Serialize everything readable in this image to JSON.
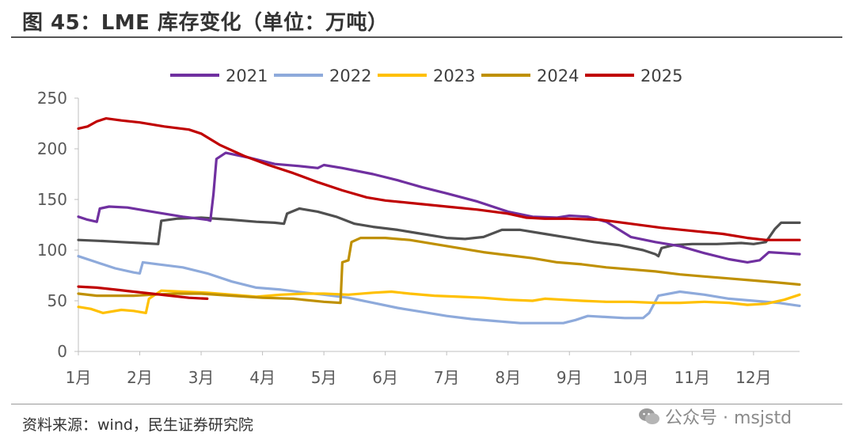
{
  "figure": {
    "title": "图 45：LME 库存变化（单位：万吨）",
    "source": "资料来源：wind，民生证券研究院",
    "watermark": "公众号 · msjstd"
  },
  "chart_data": {
    "type": "line",
    "title": "图 45：LME 库存变化（单位：万吨）",
    "xlabel": "",
    "ylabel": "",
    "x_ticks": [
      "1月",
      "2月",
      "3月",
      "4月",
      "5月",
      "6月",
      "7月",
      "8月",
      "9月",
      "10月",
      "11月",
      "12月"
    ],
    "xlim": [
      1,
      12.75
    ],
    "ylim": [
      0,
      250
    ],
    "y_ticks": [
      0,
      50,
      100,
      150,
      200,
      250
    ],
    "grid": false,
    "legend_position": "top",
    "series": [
      {
        "name": "2021",
        "color": "#7030a0",
        "points": [
          [
            1,
            133
          ],
          [
            1.15,
            130
          ],
          [
            1.3,
            128
          ],
          [
            1.35,
            141
          ],
          [
            1.5,
            143
          ],
          [
            1.8,
            142
          ],
          [
            2.2,
            138
          ],
          [
            2.7,
            133
          ],
          [
            3.1,
            130
          ],
          [
            3.15,
            129
          ],
          [
            3.2,
            155
          ],
          [
            3.25,
            190
          ],
          [
            3.4,
            196
          ],
          [
            3.8,
            191
          ],
          [
            4.2,
            185
          ],
          [
            4.6,
            183
          ],
          [
            4.9,
            181
          ],
          [
            5.0,
            184
          ],
          [
            5.3,
            181
          ],
          [
            5.8,
            175
          ],
          [
            6.2,
            169
          ],
          [
            6.6,
            162
          ],
          [
            7.0,
            156
          ],
          [
            7.5,
            148
          ],
          [
            8.0,
            138
          ],
          [
            8.4,
            133
          ],
          [
            8.8,
            132
          ],
          [
            9.0,
            134
          ],
          [
            9.3,
            133
          ],
          [
            9.6,
            128
          ],
          [
            10.0,
            113
          ],
          [
            10.4,
            108
          ],
          [
            10.8,
            104
          ],
          [
            11.2,
            97
          ],
          [
            11.6,
            91
          ],
          [
            11.9,
            88
          ],
          [
            12.1,
            90
          ],
          [
            12.25,
            98
          ],
          [
            12.5,
            97
          ],
          [
            12.75,
            96
          ]
        ]
      },
      {
        "name": "2022",
        "color": "#8eaadb",
        "points": [
          [
            1,
            94
          ],
          [
            1.3,
            88
          ],
          [
            1.6,
            82
          ],
          [
            1.9,
            78
          ],
          [
            2.0,
            77
          ],
          [
            2.05,
            88
          ],
          [
            2.3,
            86
          ],
          [
            2.7,
            83
          ],
          [
            3.1,
            77
          ],
          [
            3.5,
            69
          ],
          [
            3.9,
            63
          ],
          [
            4.3,
            61
          ],
          [
            4.7,
            58
          ],
          [
            5.0,
            56
          ],
          [
            5.4,
            53
          ],
          [
            5.8,
            48
          ],
          [
            6.2,
            43
          ],
          [
            6.6,
            39
          ],
          [
            7.0,
            35
          ],
          [
            7.4,
            32
          ],
          [
            7.8,
            30
          ],
          [
            8.2,
            28
          ],
          [
            8.6,
            28
          ],
          [
            8.9,
            28
          ],
          [
            9.1,
            31
          ],
          [
            9.3,
            35
          ],
          [
            9.6,
            34
          ],
          [
            9.9,
            33
          ],
          [
            10.2,
            33
          ],
          [
            10.3,
            38
          ],
          [
            10.45,
            55
          ],
          [
            10.8,
            59
          ],
          [
            11.2,
            56
          ],
          [
            11.6,
            52
          ],
          [
            12.0,
            50
          ],
          [
            12.4,
            48
          ],
          [
            12.75,
            45
          ]
        ]
      },
      {
        "name": "2023",
        "color": "#ffc000",
        "points": [
          [
            1,
            44
          ],
          [
            1.2,
            42
          ],
          [
            1.4,
            38
          ],
          [
            1.7,
            41
          ],
          [
            1.9,
            40
          ],
          [
            2.1,
            38
          ],
          [
            2.15,
            52
          ],
          [
            2.35,
            60
          ],
          [
            2.7,
            59
          ],
          [
            3.1,
            58
          ],
          [
            3.5,
            56
          ],
          [
            3.9,
            54
          ],
          [
            4.3,
            56
          ],
          [
            4.7,
            57
          ],
          [
            5.0,
            57
          ],
          [
            5.4,
            56
          ],
          [
            5.8,
            58
          ],
          [
            6.1,
            59
          ],
          [
            6.4,
            57
          ],
          [
            6.8,
            55
          ],
          [
            7.2,
            54
          ],
          [
            7.6,
            53
          ],
          [
            8.0,
            51
          ],
          [
            8.4,
            50
          ],
          [
            8.6,
            52
          ],
          [
            8.9,
            51
          ],
          [
            9.2,
            50
          ],
          [
            9.6,
            49
          ],
          [
            10.0,
            49
          ],
          [
            10.4,
            48
          ],
          [
            10.8,
            48
          ],
          [
            11.2,
            49
          ],
          [
            11.6,
            48
          ],
          [
            11.9,
            46
          ],
          [
            12.2,
            47
          ],
          [
            12.5,
            51
          ],
          [
            12.75,
            56
          ]
        ]
      },
      {
        "name": "2024",
        "color": "#bf9000",
        "points": [
          [
            1,
            57
          ],
          [
            1.3,
            55
          ],
          [
            1.6,
            55
          ],
          [
            1.9,
            55
          ],
          [
            2.2,
            56
          ],
          [
            2.6,
            57
          ],
          [
            3.0,
            57
          ],
          [
            3.5,
            55
          ],
          [
            4.0,
            53
          ],
          [
            4.5,
            52
          ],
          [
            5.0,
            49
          ],
          [
            5.27,
            48
          ],
          [
            5.3,
            88
          ],
          [
            5.4,
            90
          ],
          [
            5.45,
            108
          ],
          [
            5.6,
            112
          ],
          [
            6.0,
            112
          ],
          [
            6.4,
            110
          ],
          [
            6.8,
            106
          ],
          [
            7.2,
            102
          ],
          [
            7.6,
            98
          ],
          [
            8.0,
            95
          ],
          [
            8.4,
            92
          ],
          [
            8.8,
            88
          ],
          [
            9.2,
            86
          ],
          [
            9.6,
            83
          ],
          [
            10.0,
            81
          ],
          [
            10.4,
            79
          ],
          [
            10.8,
            76
          ],
          [
            11.2,
            74
          ],
          [
            11.6,
            72
          ],
          [
            12.0,
            70
          ],
          [
            12.4,
            68
          ],
          [
            12.75,
            66
          ]
        ]
      },
      {
        "name": "2025",
        "color": "#c00000",
        "points": [
          [
            1,
            64
          ],
          [
            1.3,
            63
          ],
          [
            1.6,
            61
          ],
          [
            1.9,
            59
          ],
          [
            2.2,
            57
          ],
          [
            2.5,
            55
          ],
          [
            2.8,
            53
          ],
          [
            3.1,
            52
          ]
        ]
      },
      {
        "name": "",
        "color": "#505050",
        "points": [
          [
            1,
            110
          ],
          [
            1.4,
            109
          ],
          [
            1.7,
            108
          ],
          [
            2.0,
            107
          ],
          [
            2.3,
            106
          ],
          [
            2.35,
            129
          ],
          [
            2.6,
            131
          ],
          [
            3.0,
            132
          ],
          [
            3.5,
            130
          ],
          [
            3.9,
            128
          ],
          [
            4.2,
            127
          ],
          [
            4.35,
            126
          ],
          [
            4.4,
            136
          ],
          [
            4.6,
            141
          ],
          [
            4.9,
            138
          ],
          [
            5.2,
            133
          ],
          [
            5.5,
            126
          ],
          [
            5.8,
            123
          ],
          [
            6.2,
            120
          ],
          [
            6.6,
            116
          ],
          [
            7.0,
            112
          ],
          [
            7.3,
            111
          ],
          [
            7.6,
            113
          ],
          [
            7.9,
            120
          ],
          [
            8.2,
            120
          ],
          [
            8.6,
            116
          ],
          [
            9.0,
            112
          ],
          [
            9.4,
            108
          ],
          [
            9.8,
            105
          ],
          [
            10.2,
            100
          ],
          [
            10.4,
            96
          ],
          [
            10.45,
            94
          ],
          [
            10.5,
            102
          ],
          [
            10.7,
            105
          ],
          [
            11.0,
            106
          ],
          [
            11.4,
            106
          ],
          [
            11.8,
            107
          ],
          [
            12.0,
            106
          ],
          [
            12.2,
            108
          ],
          [
            12.35,
            121
          ],
          [
            12.45,
            127
          ],
          [
            12.75,
            127
          ]
        ]
      },
      {
        "name": "",
        "color": "#c00000",
        "points": [
          [
            1,
            220
          ],
          [
            1.15,
            222
          ],
          [
            1.3,
            227
          ],
          [
            1.45,
            230
          ],
          [
            1.7,
            228
          ],
          [
            2.0,
            226
          ],
          [
            2.4,
            222
          ],
          [
            2.8,
            219
          ],
          [
            3.0,
            215
          ],
          [
            3.3,
            204
          ],
          [
            3.7,
            193
          ],
          [
            4.1,
            184
          ],
          [
            4.5,
            176
          ],
          [
            4.9,
            167
          ],
          [
            5.3,
            159
          ],
          [
            5.7,
            152
          ],
          [
            6.0,
            149
          ],
          [
            6.5,
            146
          ],
          [
            7.0,
            143
          ],
          [
            7.5,
            140
          ],
          [
            8.0,
            136
          ],
          [
            8.3,
            132
          ],
          [
            8.6,
            131
          ],
          [
            9.0,
            131
          ],
          [
            9.5,
            130
          ],
          [
            10.0,
            126
          ],
          [
            10.5,
            122
          ],
          [
            11.0,
            119
          ],
          [
            11.5,
            116
          ],
          [
            11.9,
            112
          ],
          [
            12.2,
            110
          ],
          [
            12.75,
            110
          ]
        ]
      }
    ]
  }
}
